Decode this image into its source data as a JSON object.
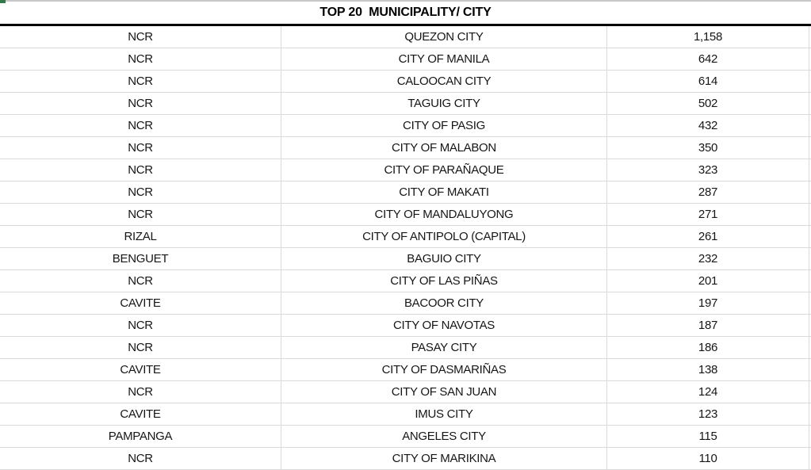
{
  "table": {
    "title": "TOP 20  MUNICIPALITY/ CITY",
    "columns": [
      "region",
      "municipality_city",
      "count"
    ],
    "rows": [
      {
        "region": "NCR",
        "city": "QUEZON CITY",
        "value": "1,158"
      },
      {
        "region": "NCR",
        "city": "CITY OF MANILA",
        "value": "642"
      },
      {
        "region": "NCR",
        "city": "CALOOCAN CITY",
        "value": "614"
      },
      {
        "region": "NCR",
        "city": "TAGUIG CITY",
        "value": "502"
      },
      {
        "region": "NCR",
        "city": "CITY OF PASIG",
        "value": "432"
      },
      {
        "region": "NCR",
        "city": "CITY OF MALABON",
        "value": "350"
      },
      {
        "region": "NCR",
        "city": "CITY OF PARAÑAQUE",
        "value": "323"
      },
      {
        "region": "NCR",
        "city": "CITY OF MAKATI",
        "value": "287"
      },
      {
        "region": "NCR",
        "city": "CITY OF MANDALUYONG",
        "value": "271"
      },
      {
        "region": "RIZAL",
        "city": "CITY OF ANTIPOLO (CAPITAL)",
        "value": "261"
      },
      {
        "region": "BENGUET",
        "city": "BAGUIO CITY",
        "value": "232"
      },
      {
        "region": "NCR",
        "city": "CITY OF LAS PIÑAS",
        "value": "201"
      },
      {
        "region": "CAVITE",
        "city": "BACOOR CITY",
        "value": "197"
      },
      {
        "region": "NCR",
        "city": "CITY OF NAVOTAS",
        "value": "187"
      },
      {
        "region": "NCR",
        "city": "PASAY CITY",
        "value": "186"
      },
      {
        "region": "CAVITE",
        "city": "CITY OF DASMARIÑAS",
        "value": "138"
      },
      {
        "region": "NCR",
        "city": "CITY OF SAN JUAN",
        "value": "124"
      },
      {
        "region": "CAVITE",
        "city": "IMUS CITY",
        "value": "123"
      },
      {
        "region": "PAMPANGA",
        "city": "ANGELES CITY",
        "value": "115"
      },
      {
        "region": "NCR",
        "city": "CITY OF MARIKINA",
        "value": "110"
      }
    ],
    "colors": {
      "gridline": "#dadada",
      "header_border": "#000000",
      "text": "#161616",
      "top_strip": "#c7c7c7",
      "green_mark": "#35794b"
    }
  }
}
